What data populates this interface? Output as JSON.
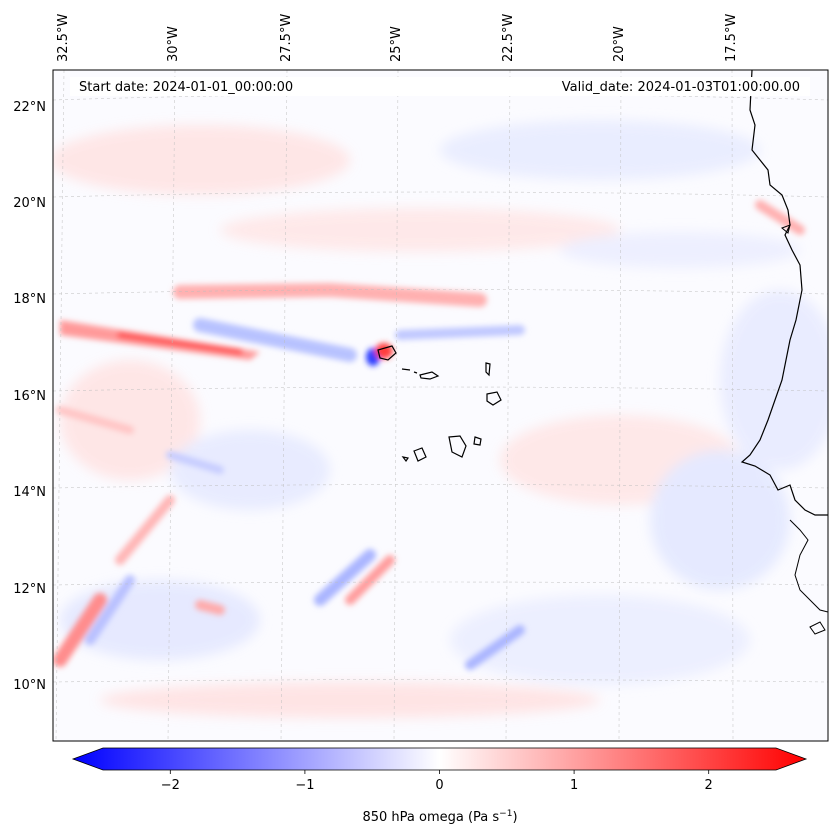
{
  "header": {
    "start_date": "Start date: 2024-01-01_00:00:00",
    "valid_date": "Valid_date: 2024-01-03T01:00:00.00"
  },
  "map": {
    "lon_labels": [
      "32.5°W",
      "30°W",
      "27.5°W",
      "25°W",
      "22.5°W",
      "20°W",
      "17.5°W"
    ],
    "lat_labels": [
      "22°N",
      "20°N",
      "18°N",
      "16°N",
      "14°N",
      "12°N",
      "10°N"
    ],
    "field": "850 hPa omega"
  },
  "colorbar": {
    "ticks": [
      "−2",
      "−1",
      "0",
      "1",
      "2"
    ],
    "tick_values": [
      -2,
      -1,
      0,
      1,
      2
    ],
    "range": [
      -2.5,
      2.5
    ],
    "label_main": "850 hPa omega (Pa s",
    "label_sup": "−1",
    "label_end": ")",
    "colors": {
      "min": "#0000ff",
      "mid": "#ffffff",
      "max": "#ff0000"
    }
  }
}
